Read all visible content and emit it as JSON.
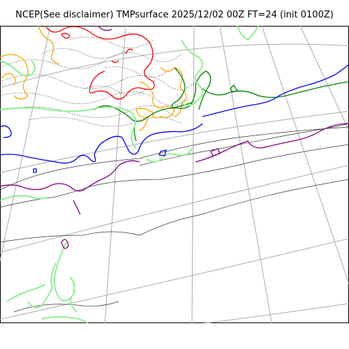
{
  "title": "NCEP(See disclaimer) TMPsurface 2025/12/02 00Z FT=24 (init 0100Z)",
  "colors": {
    "background": "#ffffff",
    "graticule": "#aaaaaa",
    "coast": "#000000",
    "isotherm_minor": "#555555",
    "red": "#ff0000",
    "orange": "#ffa500",
    "green": "#008000",
    "lightgreen": "#90ee90",
    "blue": "#0000ff",
    "purple": "#800080"
  }
}
